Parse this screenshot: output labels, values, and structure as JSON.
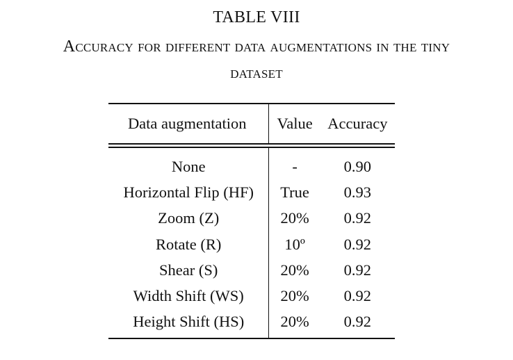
{
  "table": {
    "number": "TABLE VIII",
    "caption_line1": "Accuracy for different data augmentations in the tiny",
    "caption_line2": "dataset",
    "headers": [
      "Data augmentation",
      "Value",
      "Accuracy"
    ],
    "rows": [
      [
        "None",
        "-",
        "0.90"
      ],
      [
        "Horizontal Flip (HF)",
        "True",
        "0.93"
      ],
      [
        "Zoom (Z)",
        "20%",
        "0.92"
      ],
      [
        "Rotate (R)",
        "10º",
        "0.92"
      ],
      [
        "Shear (S)",
        "20%",
        "0.92"
      ],
      [
        "Width Shift (WS)",
        "20%",
        "0.92"
      ],
      [
        "Height Shift (HS)",
        "20%",
        "0.92"
      ]
    ]
  }
}
